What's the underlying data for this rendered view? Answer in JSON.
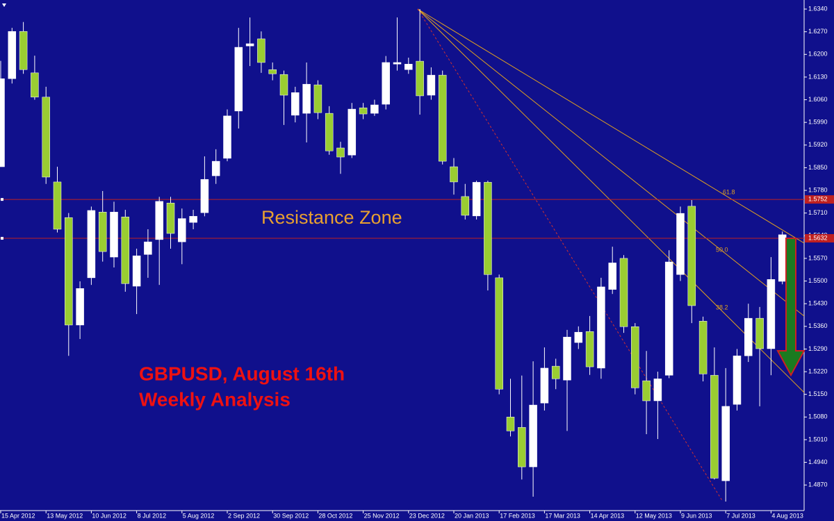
{
  "chart_data": {
    "type": "candlestick",
    "categories": [
      "15 Apr 2012",
      null,
      null,
      null,
      "13 May 2012",
      null,
      null,
      null,
      "10 Jun 2012",
      null,
      null,
      null,
      "8 Jul 2012",
      null,
      null,
      null,
      "5 Aug 2012",
      null,
      null,
      null,
      "2 Sep 2012",
      null,
      null,
      null,
      "30 Sep 2012",
      null,
      null,
      null,
      "28 Oct 2012",
      null,
      null,
      null,
      "25 Nov 2012",
      null,
      null,
      null,
      "23 Dec 2012",
      null,
      null,
      null,
      "20 Jan 2013",
      null,
      null,
      null,
      "17 Feb 2013",
      null,
      null,
      null,
      "17 Mar 2013",
      null,
      null,
      null,
      "14 Apr 2013",
      null,
      null,
      null,
      "12 May 2013",
      null,
      null,
      null,
      "9 Jun 2013",
      null,
      null,
      null,
      "7 Jul 2013",
      null,
      null,
      null,
      "4 Aug 2013",
      null
    ],
    "open": [
      1.5853,
      1.6125,
      1.6271,
      1.6143,
      1.6068,
      1.5806,
      1.5696,
      1.5364,
      1.551,
      1.5713,
      1.5574,
      1.5698,
      1.5484,
      1.5582,
      1.5628,
      1.5741,
      1.5621,
      1.5681,
      1.5711,
      1.5825,
      1.5879,
      1.6025,
      1.6226,
      1.6248,
      1.6153,
      1.6138,
      1.6012,
      1.6018,
      1.6106,
      1.6018,
      1.5911,
      1.5889,
      1.6035,
      1.6018,
      1.6046,
      1.617,
      1.6153,
      1.6179,
      1.6074,
      1.6136,
      1.5853,
      1.5761,
      1.5701,
      1.5805,
      1.551,
      1.508,
      1.5048,
      1.4926,
      1.5123,
      1.5237,
      1.5194,
      1.531,
      1.5344,
      1.5231,
      1.5474,
      1.557,
      1.5359,
      1.5192,
      1.513,
      1.5209,
      1.552,
      1.5731,
      1.5376,
      1.5209,
      1.4883,
      1.5119,
      1.5269,
      1.5385,
      1.5291,
      1.5499
    ],
    "high": [
      1.618,
      1.6282,
      1.63,
      1.6196,
      1.61,
      1.5853,
      1.571,
      1.5499,
      1.573,
      1.5778,
      1.5745,
      1.572,
      1.56,
      1.566,
      1.576,
      1.576,
      1.5724,
      1.572,
      1.5885,
      1.5907,
      1.603,
      1.6282,
      1.6314,
      1.6271,
      1.6175,
      1.615,
      1.61,
      1.6175,
      1.612,
      1.604,
      1.593,
      1.605,
      1.605,
      1.606,
      1.6195,
      1.6314,
      1.619,
      1.634,
      1.616,
      1.615,
      1.588,
      1.58,
      1.581,
      1.581,
      1.552,
      1.5198,
      1.5208,
      1.5252,
      1.5295,
      1.526,
      1.5349,
      1.536,
      1.5392,
      1.551,
      1.5606,
      1.558,
      1.537,
      1.5284,
      1.522,
      1.5595,
      1.573,
      1.575,
      1.539,
      1.5295,
      1.5231,
      1.529,
      1.543,
      1.542,
      1.5574,
      1.5653
    ],
    "low": [
      1.5853,
      1.611,
      1.614,
      1.606,
      1.58,
      1.565,
      1.5269,
      1.5321,
      1.5488,
      1.556,
      1.5542,
      1.5467,
      1.5398,
      1.551,
      1.5488,
      1.56,
      1.5552,
      1.566,
      1.57,
      1.58,
      1.587,
      1.5971,
      1.6164,
      1.6143,
      1.612,
      1.5982,
      1.599,
      1.5928,
      1.6,
      1.589,
      1.5831,
      1.588,
      1.6,
      1.601,
      1.603,
      1.615,
      1.614,
      1.6014,
      1.606,
      1.586,
      1.5767,
      1.569,
      1.569,
      1.5471,
      1.515,
      1.502,
      1.4887,
      1.4834,
      1.51,
      1.5166,
      1.5037,
      1.529,
      1.521,
      1.5198,
      1.546,
      1.534,
      1.515,
      1.5027,
      1.5012,
      1.52,
      1.55,
      1.537,
      1.519,
      1.4887,
      1.4819,
      1.51,
      1.525,
      1.5113,
      1.5209,
      1.549
    ],
    "close": [
      1.6125,
      1.6271,
      1.6153,
      1.6068,
      1.5821,
      1.566,
      1.5364,
      1.5477,
      1.5718,
      1.5591,
      1.5713,
      1.5492,
      1.5578,
      1.5621,
      1.5746,
      1.5647,
      1.5693,
      1.57,
      1.5814,
      1.587,
      1.601,
      1.6222,
      1.6233,
      1.6175,
      1.614,
      1.6074,
      1.6082,
      1.6108,
      1.602,
      1.5902,
      1.5883,
      1.6031,
      1.6016,
      1.6044,
      1.6175,
      1.6175,
      1.617,
      1.6072,
      1.6136,
      1.587,
      1.5806,
      1.5703,
      1.5805,
      1.552,
      1.5166,
      1.5037,
      1.4926,
      1.5117,
      1.5231,
      1.5198,
      1.5327,
      1.5342,
      1.5235,
      1.5482,
      1.5556,
      1.5359,
      1.517,
      1.513,
      1.5198,
      1.5559,
      1.5709,
      1.5424,
      1.5213,
      1.4891,
      1.5113,
      1.5269,
      1.5385,
      1.5291,
      1.5505,
      1.5643
    ],
    "bull_color": "#ffffff",
    "bear_color": "#9acd32",
    "wick_color": "#ffffff",
    "ylim": [
      1.4791,
      1.6368
    ],
    "yticks": [
      {
        "value": 1.634,
        "label": "1.6340"
      },
      {
        "value": 1.627,
        "label": "1.6270"
      },
      {
        "value": 1.62,
        "label": "1.6200"
      },
      {
        "value": 1.613,
        "label": "1.6130"
      },
      {
        "value": 1.606,
        "label": "1.6060"
      },
      {
        "value": 1.599,
        "label": "1.5990"
      },
      {
        "value": 1.592,
        "label": "1.5920"
      },
      {
        "value": 1.585,
        "label": "1.5850"
      },
      {
        "value": 1.578,
        "label": "1.5780"
      },
      {
        "value": 1.571,
        "label": "1.5710"
      },
      {
        "value": 1.564,
        "label": "1.5640"
      },
      {
        "value": 1.557,
        "label": "1.5570"
      },
      {
        "value": 1.55,
        "label": "1.5500"
      },
      {
        "value": 1.543,
        "label": "1.5430"
      },
      {
        "value": 1.536,
        "label": "1.5360"
      },
      {
        "value": 1.529,
        "label": "1.5290"
      },
      {
        "value": 1.522,
        "label": "1.5220"
      },
      {
        "value": 1.515,
        "label": "1.5150"
      },
      {
        "value": 1.508,
        "label": "1.5080"
      },
      {
        "value": 1.501,
        "label": "1.5010"
      },
      {
        "value": 1.494,
        "label": "1.4940"
      },
      {
        "value": 1.487,
        "label": "1.4870"
      }
    ],
    "levels": [
      {
        "value": 1.5752,
        "label": "1.5752"
      },
      {
        "value": 1.5632,
        "label": "1.5632"
      }
    ],
    "grid": false,
    "annotations": [
      "Resistance Zone",
      "GBPUSD, August 16th",
      "Weekly Analysis"
    ],
    "fan_labels": [
      "61.8",
      "50.0",
      "38.2"
    ]
  }
}
